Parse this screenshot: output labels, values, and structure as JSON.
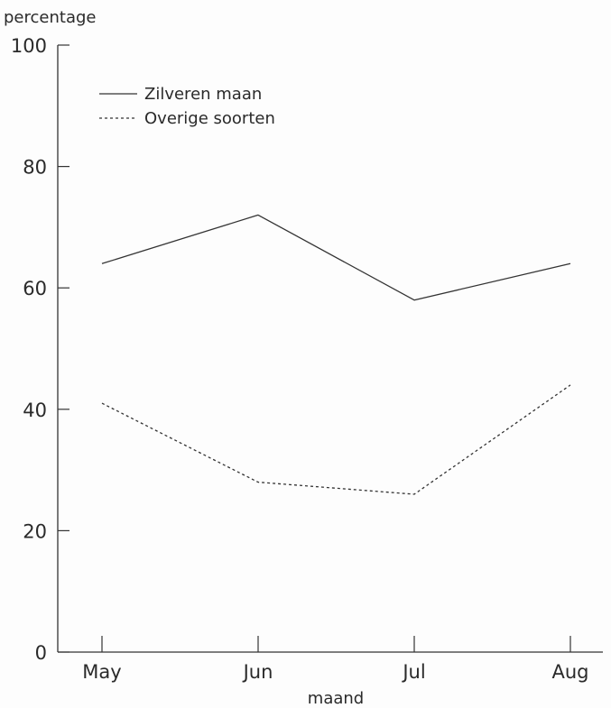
{
  "chart_data": {
    "type": "line",
    "ylabel": "percentage",
    "xlabel": "maand",
    "categories": [
      "May",
      "Jun",
      "Jul",
      "Aug"
    ],
    "ylim": [
      0,
      100
    ],
    "yticks": [
      0,
      20,
      40,
      60,
      80,
      100
    ],
    "grid": false,
    "legend_position": "top-left",
    "series": [
      {
        "name": "Zilveren maan",
        "values": [
          64,
          72,
          58,
          64
        ],
        "line_style": "solid",
        "color": "#333333"
      },
      {
        "name": "Overige soorten",
        "values": [
          41,
          28,
          26,
          44
        ],
        "line_style": "dashed",
        "color": "#333333"
      }
    ]
  }
}
